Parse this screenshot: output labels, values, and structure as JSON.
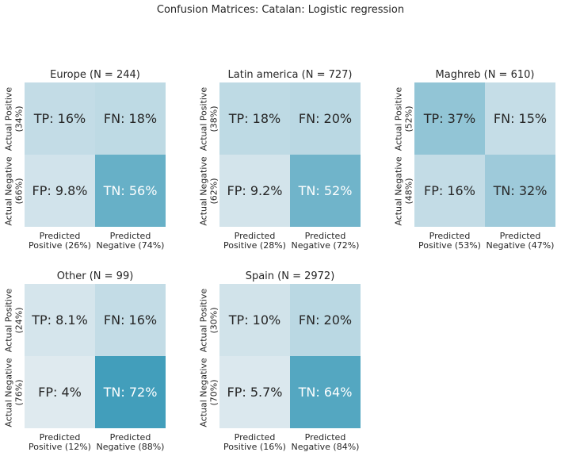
{
  "title": "Confusion Matrices: Catalan: Logistic regression",
  "chart_data": {
    "type": "heatmap",
    "title": "Confusion Matrices: Catalan: Logistic regression",
    "panels": [
      {
        "title": "Europe (N = 244)",
        "tp": "TP: 16%",
        "fn": "FN: 18%",
        "fp": "FP: 9.8%",
        "tn": "TN: 56%",
        "values": {
          "tp": 16,
          "fn": 18,
          "fp": 9.8,
          "tn": 56
        },
        "ylabels": [
          [
            "Actual Positive",
            "(34%)"
          ],
          [
            "Actual Negative",
            "(66%)"
          ]
        ],
        "xlabels": [
          [
            "Predicted",
            "Positive (26%)"
          ],
          [
            "Predicted",
            "Negative (74%)"
          ]
        ]
      },
      {
        "title": "Latin america (N = 727)",
        "tp": "TP: 18%",
        "fn": "FN: 20%",
        "fp": "FP: 9.2%",
        "tn": "TN: 52%",
        "values": {
          "tp": 18,
          "fn": 20,
          "fp": 9.2,
          "tn": 52
        },
        "ylabels": [
          [
            "Actual Positive",
            "(38%)"
          ],
          [
            "Actual Negative",
            "(62%)"
          ]
        ],
        "xlabels": [
          [
            "Predicted",
            "Positive (28%)"
          ],
          [
            "Predicted",
            "Negative (72%)"
          ]
        ]
      },
      {
        "title": "Maghreb (N = 610)",
        "tp": "TP: 37%",
        "fn": "FN: 15%",
        "fp": "FP: 16%",
        "tn": "TN: 32%",
        "values": {
          "tp": 37,
          "fn": 15,
          "fp": 16,
          "tn": 32
        },
        "ylabels": [
          [
            "Actual Positive",
            "(52%)"
          ],
          [
            "Actual Negative",
            "(48%)"
          ]
        ],
        "xlabels": [
          [
            "Predicted",
            "Positive (53%)"
          ],
          [
            "Predicted",
            "Negative (47%)"
          ]
        ]
      },
      {
        "title": "Other (N = 99)",
        "tp": "TP: 8.1%",
        "fn": "FN: 16%",
        "fp": "FP: 4%",
        "tn": "TN: 72%",
        "values": {
          "tp": 8.1,
          "fn": 16,
          "fp": 4,
          "tn": 72
        },
        "ylabels": [
          [
            "Actual Positive",
            "(24%)"
          ],
          [
            "Actual Negative",
            "(76%)"
          ]
        ],
        "xlabels": [
          [
            "Predicted",
            "Positive (12%)"
          ],
          [
            "Predicted",
            "Negative (88%)"
          ]
        ]
      },
      {
        "title": "Spain (N = 2972)",
        "tp": "TP: 10%",
        "fn": "FN: 20%",
        "fp": "FP: 5.7%",
        "tn": "TN: 64%",
        "values": {
          "tp": 10,
          "fn": 20,
          "fp": 5.7,
          "tn": 64
        },
        "ylabels": [
          [
            "Actual Positive",
            "(30%)"
          ],
          [
            "Actual Negative",
            "(70%)"
          ]
        ],
        "xlabels": [
          [
            "Predicted",
            "Positive (16%)"
          ],
          [
            "Predicted",
            "Negative (84%)"
          ]
        ]
      }
    ],
    "colormap": {
      "low": "#e8eef2",
      "high": "#2f95b5",
      "light_text": "#262626",
      "dark_text": "#ffffff"
    }
  }
}
